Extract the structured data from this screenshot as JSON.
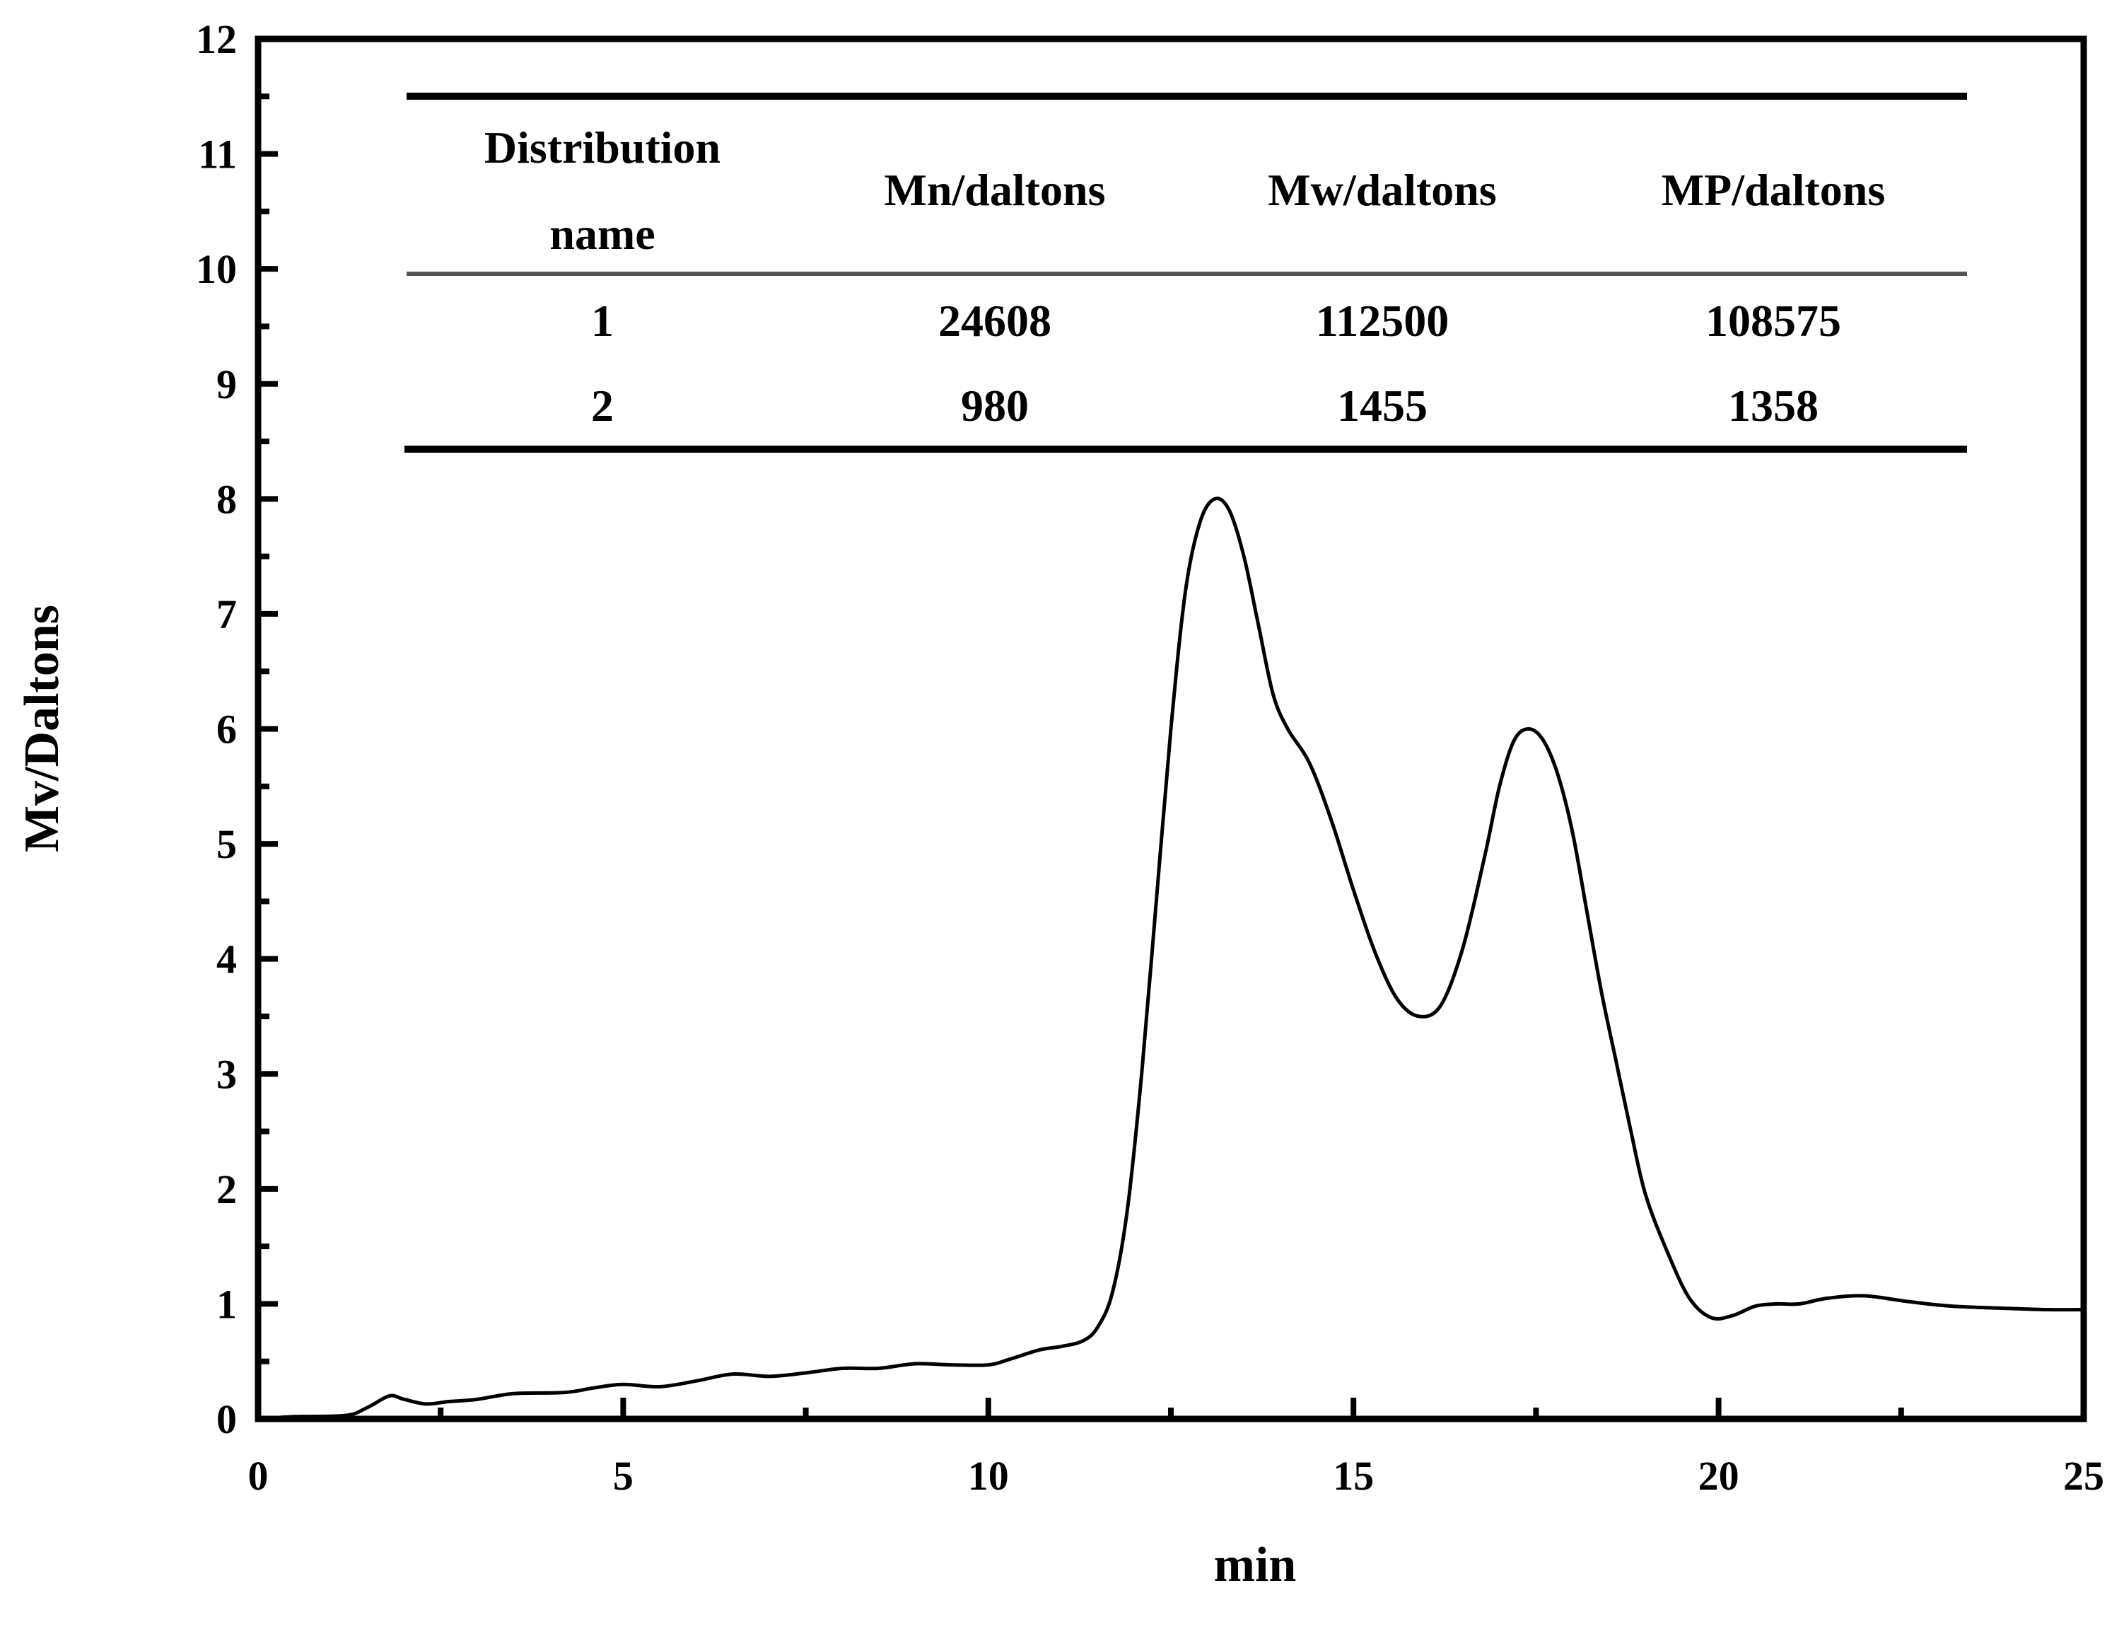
{
  "chart_data": {
    "type": "line",
    "title": "",
    "xlabel": "min",
    "ylabel": "Mv/Daltons",
    "xlim": [
      0,
      25
    ],
    "ylim": [
      0,
      12
    ],
    "x_ticks": [
      0,
      5,
      10,
      15,
      20,
      25
    ],
    "y_ticks": [
      0,
      1,
      2,
      3,
      4,
      5,
      6,
      7,
      8,
      9,
      10,
      11,
      12
    ],
    "grid": false,
    "legend": null,
    "series": [
      {
        "name": "GPC trace",
        "color": "#000000",
        "x": [
          0,
          0.5,
          1.2,
          1.5,
          1.8,
          2.0,
          2.3,
          2.6,
          3.0,
          3.5,
          4.2,
          4.6,
          5.0,
          5.5,
          6.0,
          6.5,
          7.0,
          7.5,
          8.0,
          8.5,
          9.0,
          9.5,
          10.0,
          10.3,
          10.7,
          11.0,
          11.3,
          11.5,
          11.7,
          11.9,
          12.1,
          12.3,
          12.5,
          12.7,
          12.9,
          13.1,
          13.3,
          13.5,
          13.7,
          13.9,
          14.1,
          14.4,
          14.7,
          15.0,
          15.3,
          15.6,
          15.9,
          16.2,
          16.5,
          16.8,
          17.0,
          17.2,
          17.4,
          17.6,
          17.8,
          18.0,
          18.2,
          18.4,
          18.6,
          18.8,
          19.0,
          19.3,
          19.6,
          19.9,
          20.2,
          20.5,
          20.8,
          21.1,
          21.5,
          22.0,
          22.6,
          23.2,
          24.0,
          24.5,
          25.0
        ],
        "y": [
          0.0,
          0.02,
          0.03,
          0.1,
          0.2,
          0.17,
          0.13,
          0.15,
          0.17,
          0.22,
          0.23,
          0.27,
          0.3,
          0.28,
          0.33,
          0.39,
          0.37,
          0.4,
          0.44,
          0.44,
          0.48,
          0.47,
          0.47,
          0.52,
          0.6,
          0.63,
          0.68,
          0.8,
          1.1,
          1.8,
          3.0,
          4.5,
          6.0,
          7.2,
          7.8,
          8.0,
          7.9,
          7.5,
          6.9,
          6.3,
          6.0,
          5.7,
          5.2,
          4.6,
          4.05,
          3.65,
          3.5,
          3.6,
          4.1,
          4.9,
          5.5,
          5.9,
          6.0,
          5.9,
          5.6,
          5.1,
          4.4,
          3.7,
          3.1,
          2.5,
          1.95,
          1.45,
          1.05,
          0.88,
          0.9,
          0.98,
          1.0,
          1.0,
          1.05,
          1.07,
          1.02,
          0.98,
          0.96,
          0.95,
          0.95
        ]
      }
    ],
    "inset_table": {
      "columns": [
        "Distribution name",
        "Mn/daltons",
        "Mw/daltons",
        "MP/daltons"
      ],
      "rows": [
        [
          "1",
          "24608",
          "112500",
          "108575"
        ],
        [
          "2",
          "980",
          "1455",
          "1358"
        ]
      ]
    }
  },
  "table": {
    "header": {
      "col1_line1": "Distribution",
      "col1_line2": "name",
      "col2": "Mn/daltons",
      "col3": "Mw/daltons",
      "col4": "MP/daltons"
    },
    "rows": [
      {
        "name": "1",
        "mn": "24608",
        "mw": "112500",
        "mp": "108575"
      },
      {
        "name": "2",
        "mn": "980",
        "mw": "1455",
        "mp": "1358"
      }
    ]
  },
  "axes": {
    "x_title": "min",
    "y_title": "Mv/Daltons"
  }
}
